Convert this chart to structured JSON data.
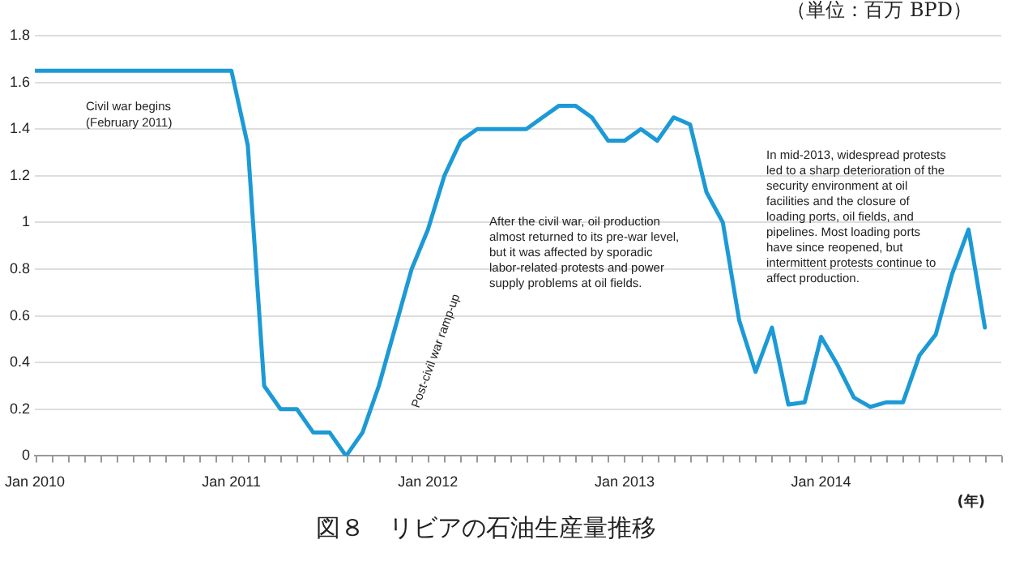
{
  "chart_data": {
    "type": "line",
    "title": "図８　リビアの石油生産量推移",
    "ylabel": "（単位：百万 BPD）",
    "xlabel": "(年)",
    "annotations": [
      "Civil war begins (February 2011)",
      "Post-civil war ramp-up",
      "After the civil war, oil production almost returned to its pre-war level, but it was affected by sporadic labor-related protests and power supply problems at oil fields.",
      "In mid-2013, widespread protests led to a sharp deterioration of the security environment at oil facilities and the closure of loading ports, oil fields, and pipelines. Most loading ports have since reopened, but intermittent protests continue to affect production."
    ],
    "x": [
      "2010-01",
      "2011-01",
      "2011-02",
      "2011-03",
      "2011-04",
      "2011-05",
      "2011-06",
      "2011-07",
      "2011-08",
      "2011-09",
      "2011-10",
      "2011-11",
      "2011-12",
      "2012-01",
      "2012-02",
      "2012-03",
      "2012-04",
      "2012-05",
      "2012-06",
      "2012-07",
      "2012-08",
      "2012-09",
      "2012-10",
      "2012-11",
      "2012-12",
      "2013-01",
      "2013-02",
      "2013-03",
      "2013-04",
      "2013-05",
      "2013-06",
      "2013-07",
      "2013-08",
      "2013-09",
      "2013-10",
      "2013-11",
      "2013-12",
      "2014-01",
      "2014-02",
      "2014-03",
      "2014-04",
      "2014-05",
      "2014-06",
      "2014-07",
      "2014-08",
      "2014-09",
      "2014-10",
      "2014-11"
    ],
    "series": [
      {
        "color": "#1c9ad6",
        "values": [
          1.65,
          1.65,
          1.33,
          0.3,
          0.2,
          0.2,
          0.1,
          0.1,
          0,
          0.1,
          0.3,
          0.55,
          0.8,
          0.97,
          1.2,
          1.35,
          1.4,
          1.4,
          1.4,
          1.4,
          1.45,
          1.5,
          1.5,
          1.45,
          1.35,
          1.35,
          1.4,
          1.35,
          1.45,
          1.42,
          1.13,
          1,
          0.58,
          0.36,
          0.55,
          0.22,
          0.23,
          0.51,
          0.39,
          0.25,
          0.21,
          0.23,
          0.23,
          0.43,
          0.52,
          0.78,
          0.97,
          0.55
        ]
      }
    ],
    "xlim": [
      "2010-01",
      "2014-12"
    ],
    "xticks": [
      {
        "value": "2010-01",
        "label": "Jan 2010"
      },
      {
        "value": "2011-01",
        "label": "Jan 2011"
      },
      {
        "value": "2012-01",
        "label": "Jan 2012"
      },
      {
        "value": "2013-01",
        "label": "Jan 2013"
      },
      {
        "value": "2014-01",
        "label": "Jan 2014"
      }
    ],
    "ylim": [
      0,
      1.8
    ],
    "yticks": [
      0,
      0.2,
      0.4,
      0.6,
      0.8,
      1,
      1.2,
      1.4,
      1.6,
      1.8
    ],
    "grid": "y",
    "legend": false,
    "marker": "none",
    "line_style": "solid"
  }
}
